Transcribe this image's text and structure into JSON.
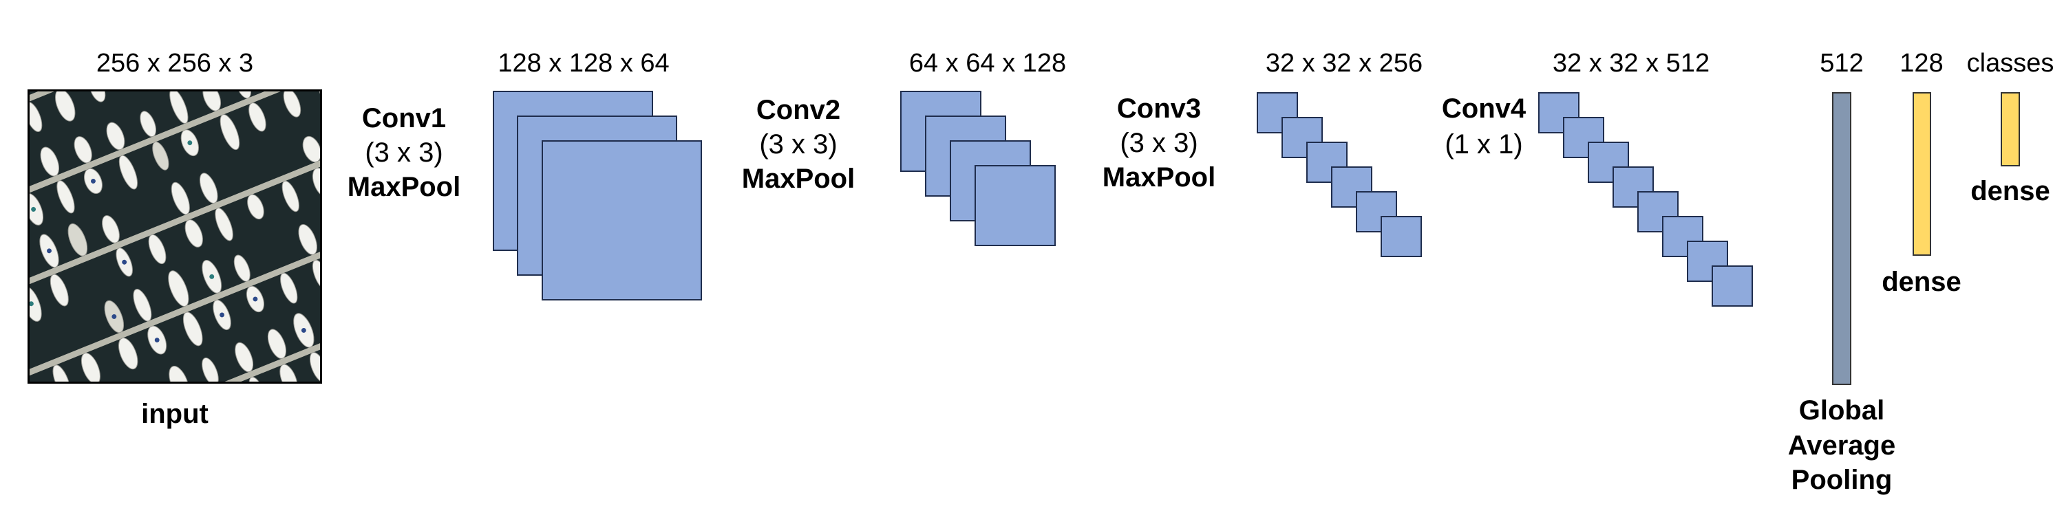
{
  "diagram": {
    "input": {
      "dimension": "256 x 256 x 3",
      "label": "input"
    },
    "layers": [
      {
        "name": "Conv1",
        "kernel": "(3 x 3)",
        "pool": "MaxPool",
        "output": "128 x 128 x 64",
        "maps": 3
      },
      {
        "name": "Conv2",
        "kernel": "(3 x 3)",
        "pool": "MaxPool",
        "output": "64 x 64 x 128",
        "maps": 4
      },
      {
        "name": "Conv3",
        "kernel": "(3 x 3)",
        "pool": "MaxPool",
        "output": "32 x 32 x 256",
        "maps": 6
      },
      {
        "name": "Conv4",
        "kernel": "(1 x 1)",
        "pool": "",
        "output": "32 x 32 x 512",
        "maps": 8
      }
    ],
    "gap": {
      "size": "512",
      "label_lines": [
        "Global",
        "Average",
        "Pooling"
      ]
    },
    "dense1": {
      "size": "128",
      "label": "dense"
    },
    "dense2": {
      "size": "classes",
      "label": "dense"
    },
    "colors": {
      "feature_map": "#8faadc",
      "gap_bar": "#8497b0",
      "dense_bar": "#ffd966"
    }
  }
}
